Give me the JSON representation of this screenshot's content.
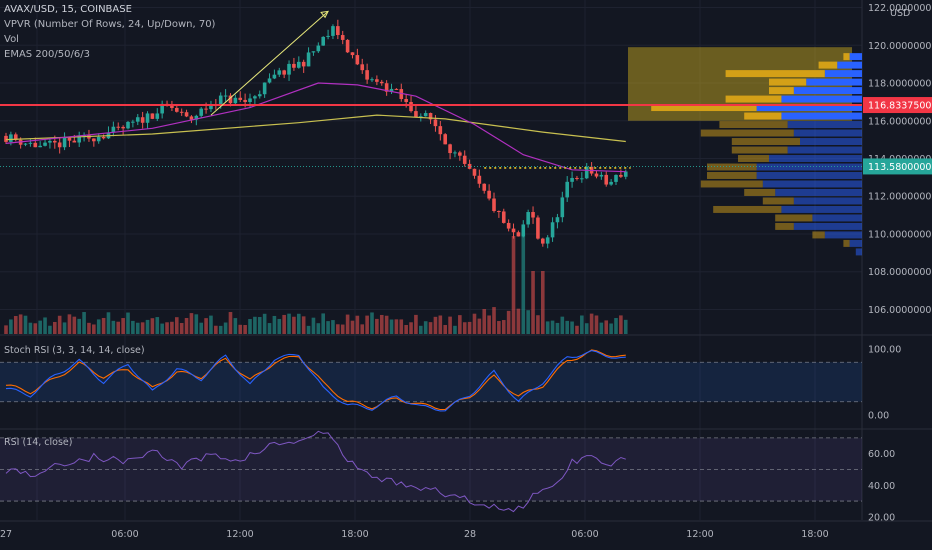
{
  "legend": {
    "symbol": "AVAX/USD, 15, COINBASE",
    "vpvr": "VPVR (Number Of Rows, 24, Up/Down, 70)",
    "vol": "Vol",
    "emas": "EMAS 200/50/6/3"
  },
  "axis_unit_top": "USD",
  "colors": {
    "background": "#131722",
    "up": "#26a69a",
    "down": "#ef5350",
    "ema_slow": "#c8c050",
    "ema_fast": "#b030c0",
    "resistance": "#f23645",
    "vp_up": "#d4a017",
    "vp_down": "#2962ff",
    "stoch_k": "#2962ff",
    "stoch_d": "#ff6d00",
    "rsi": "#7e57c2",
    "trend_arrow": "#e6e67a",
    "price_line": "#26a69a"
  },
  "chart_data": [
    {
      "type": "candlestick",
      "x_tick_labels": [
        "27",
        "06:00",
        "12:00",
        "18:00",
        "28",
        "06:00",
        "12:00",
        "18:00"
      ],
      "y_tick_labels": [
        "106.00000000",
        "108.00000000",
        "110.00000000",
        "112.00000000",
        "114.00000000",
        "116.00000000",
        "118.00000000",
        "120.00000000",
        "122.00000000"
      ],
      "ylim": [
        104.7,
        122.4
      ],
      "price_path": [
        [
          0,
          115.2
        ],
        [
          8,
          114.6
        ],
        [
          16,
          115.0
        ],
        [
          24,
          115.5
        ],
        [
          30,
          116.3
        ],
        [
          34,
          116.8
        ],
        [
          38,
          116.0
        ],
        [
          44,
          117.2
        ],
        [
          50,
          117.0
        ],
        [
          56,
          118.4
        ],
        [
          62,
          119.2
        ],
        [
          66,
          120.4
        ],
        [
          68,
          120.9
        ],
        [
          70,
          120.1
        ],
        [
          74,
          118.3
        ],
        [
          80,
          117.6
        ],
        [
          84,
          116.5
        ],
        [
          88,
          116.0
        ],
        [
          92,
          114.4
        ],
        [
          96,
          113.1
        ],
        [
          100,
          111.6
        ],
        [
          104,
          110.0
        ],
        [
          106,
          109.8
        ],
        [
          108,
          111.4
        ],
        [
          110,
          109.4
        ],
        [
          112,
          110.0
        ],
        [
          116,
          112.8
        ],
        [
          120,
          113.4
        ],
        [
          124,
          112.6
        ],
        [
          127,
          113.3
        ]
      ],
      "resistance_level": "116.83375000",
      "last_price": "113.58000000",
      "dotted_level": 113.5,
      "ema_slow": [
        [
          0,
          115.0
        ],
        [
          30,
          115.3
        ],
        [
          60,
          115.9
        ],
        [
          76,
          116.3
        ],
        [
          90,
          116.1
        ],
        [
          110,
          115.4
        ],
        [
          127,
          114.9
        ]
      ],
      "ema_fast": [
        [
          0,
          114.8
        ],
        [
          30,
          115.6
        ],
        [
          50,
          116.7
        ],
        [
          64,
          118.0
        ],
        [
          72,
          117.9
        ],
        [
          84,
          117.3
        ],
        [
          96,
          115.8
        ],
        [
          106,
          114.2
        ],
        [
          116,
          113.4
        ],
        [
          127,
          113.3
        ]
      ],
      "volume_profile": [
        {
          "price": 119.4,
          "up": 1,
          "down": 2
        },
        {
          "price": 118.95,
          "up": 3,
          "down": 4
        },
        {
          "price": 118.5,
          "up": 16,
          "down": 6
        },
        {
          "price": 118.05,
          "up": 6,
          "down": 9
        },
        {
          "price": 117.6,
          "up": 4,
          "down": 11
        },
        {
          "price": 117.15,
          "up": 9,
          "down": 13
        },
        {
          "price": 116.7,
          "up": 17,
          "down": 17
        },
        {
          "price": 116.25,
          "up": 6,
          "down": 13
        },
        {
          "price": 115.8,
          "up": 11,
          "down": 12
        },
        {
          "price": 115.35,
          "up": 15,
          "down": 11
        },
        {
          "price": 114.9,
          "up": 11,
          "down": 10
        },
        {
          "price": 114.45,
          "up": 9,
          "down": 12
        },
        {
          "price": 114.0,
          "up": 5,
          "down": 15
        },
        {
          "price": 113.55,
          "up": 8,
          "down": 17
        },
        {
          "price": 113.1,
          "up": 8,
          "down": 17
        },
        {
          "price": 112.65,
          "up": 10,
          "down": 16
        },
        {
          "price": 112.2,
          "up": 5,
          "down": 14
        },
        {
          "price": 111.75,
          "up": 5,
          "down": 11
        },
        {
          "price": 111.3,
          "up": 11,
          "down": 13
        },
        {
          "price": 110.85,
          "up": 6,
          "down": 8
        },
        {
          "price": 110.4,
          "up": 3,
          "down": 11
        },
        {
          "price": 109.95,
          "up": 2,
          "down": 6
        },
        {
          "price": 109.5,
          "up": 1,
          "down": 2
        },
        {
          "price": 109.05,
          "up": 0,
          "down": 1
        }
      ],
      "value_area": [
        116.0,
        119.9
      ]
    },
    {
      "type": "line",
      "title": "Stoch RSI (3, 3, 14, 14, close)",
      "y_tick_labels": [
        "100.00",
        "0.00"
      ],
      "ylim": [
        -20,
        120
      ],
      "band": [
        80,
        20
      ],
      "k_path": [
        [
          0,
          40
        ],
        [
          5,
          30
        ],
        [
          10,
          60
        ],
        [
          15,
          82
        ],
        [
          20,
          50
        ],
        [
          25,
          78
        ],
        [
          30,
          35
        ],
        [
          35,
          70
        ],
        [
          40,
          55
        ],
        [
          45,
          90
        ],
        [
          50,
          45
        ],
        [
          55,
          85
        ],
        [
          60,
          92
        ],
        [
          65,
          40
        ],
        [
          70,
          15
        ],
        [
          75,
          10
        ],
        [
          80,
          28
        ],
        [
          85,
          12
        ],
        [
          90,
          8
        ],
        [
          95,
          30
        ],
        [
          100,
          65
        ],
        [
          105,
          20
        ],
        [
          110,
          50
        ],
        [
          115,
          88
        ],
        [
          120,
          95
        ],
        [
          127,
          85
        ]
      ],
      "d_path": [
        [
          0,
          45
        ],
        [
          5,
          35
        ],
        [
          10,
          55
        ],
        [
          15,
          78
        ],
        [
          20,
          58
        ],
        [
          25,
          70
        ],
        [
          30,
          40
        ],
        [
          35,
          65
        ],
        [
          40,
          58
        ],
        [
          45,
          85
        ],
        [
          50,
          52
        ],
        [
          55,
          80
        ],
        [
          60,
          90
        ],
        [
          65,
          48
        ],
        [
          70,
          20
        ],
        [
          75,
          12
        ],
        [
          80,
          25
        ],
        [
          85,
          15
        ],
        [
          90,
          10
        ],
        [
          95,
          28
        ],
        [
          100,
          58
        ],
        [
          105,
          28
        ],
        [
          110,
          45
        ],
        [
          115,
          82
        ],
        [
          120,
          96
        ],
        [
          127,
          88
        ]
      ]
    },
    {
      "type": "line",
      "title": "RSI (14, close)",
      "y_tick_labels": [
        "60.00",
        "40.00",
        "20.00"
      ],
      "ylim": [
        18,
        75
      ],
      "band": [
        70,
        30
      ],
      "path": [
        [
          0,
          50
        ],
        [
          6,
          47
        ],
        [
          12,
          54
        ],
        [
          18,
          58
        ],
        [
          24,
          55
        ],
        [
          30,
          62
        ],
        [
          36,
          52
        ],
        [
          42,
          59
        ],
        [
          48,
          56
        ],
        [
          54,
          65
        ],
        [
          60,
          68
        ],
        [
          64,
          72
        ],
        [
          66,
          74
        ],
        [
          70,
          55
        ],
        [
          76,
          44
        ],
        [
          82,
          41
        ],
        [
          88,
          36
        ],
        [
          94,
          31
        ],
        [
          100,
          27
        ],
        [
          104,
          22
        ],
        [
          108,
          34
        ],
        [
          112,
          38
        ],
        [
          116,
          55
        ],
        [
          120,
          59
        ],
        [
          124,
          54
        ],
        [
          127,
          58
        ]
      ]
    }
  ]
}
